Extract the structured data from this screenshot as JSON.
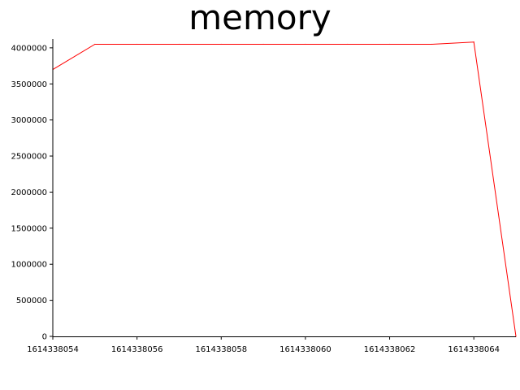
{
  "chart_data": {
    "type": "line",
    "title": "memory",
    "xlabel": "",
    "ylabel": "",
    "xlim": [
      1614338054,
      1614338065
    ],
    "ylim": [
      0,
      4100000
    ],
    "grid": false,
    "x_ticks": [
      "1614338054",
      "1614338056",
      "1614338058",
      "1614338060",
      "1614338062",
      "1614338064"
    ],
    "y_ticks": [
      "0",
      "500000",
      "1000000",
      "1500000",
      "2000000",
      "2500000",
      "3000000",
      "3500000",
      "4000000"
    ],
    "series": [
      {
        "color": "#ff0000",
        "points": [
          {
            "x": 1614338054,
            "y": 0
          },
          {
            "x": 1614338054,
            "y": 3700000
          },
          {
            "x": 1614338055,
            "y": 4050000
          },
          {
            "x": 1614338056,
            "y": 4050000
          },
          {
            "x": 1614338057,
            "y": 4050000
          },
          {
            "x": 1614338058,
            "y": 4050000
          },
          {
            "x": 1614338059,
            "y": 4050000
          },
          {
            "x": 1614338060,
            "y": 4050000
          },
          {
            "x": 1614338061,
            "y": 4050000
          },
          {
            "x": 1614338062,
            "y": 4050000
          },
          {
            "x": 1614338063,
            "y": 4050000
          },
          {
            "x": 1614338064,
            "y": 4080000
          },
          {
            "x": 1614338065,
            "y": 0
          }
        ]
      }
    ]
  }
}
